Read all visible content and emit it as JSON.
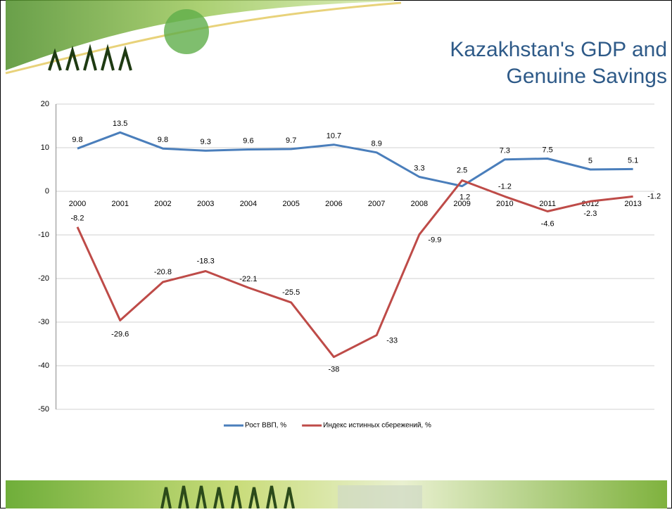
{
  "title_lines": [
    "Kazakhstan's GDP and",
    "Genuine Savings"
  ],
  "chart_data": {
    "type": "line",
    "categories": [
      "2000",
      "2001",
      "2002",
      "2003",
      "2004",
      "2005",
      "2006",
      "2007",
      "2008",
      "2009",
      "2010",
      "2011",
      "2012",
      "2013"
    ],
    "series": [
      {
        "name": "Рост ВВП, %",
        "color": "#4a7ebb",
        "values": [
          9.8,
          13.5,
          9.8,
          9.3,
          9.6,
          9.7,
          10.7,
          8.9,
          3.3,
          1.2,
          7.3,
          7.5,
          5,
          5.1
        ]
      },
      {
        "name": "Индекс истинных сбережений, %",
        "color": "#be4b48",
        "values": [
          -8.2,
          -29.6,
          -20.8,
          -18.3,
          -22.1,
          -25.5,
          -38,
          -33,
          -9.9,
          2.5,
          -1.2,
          -4.6,
          -2.3,
          -1.2
        ]
      }
    ],
    "ylim": [
      -50,
      20
    ],
    "yticks": [
      -50,
      -40,
      -30,
      -20,
      -10,
      0,
      10,
      20
    ],
    "grid": true,
    "legend": "bottom"
  }
}
